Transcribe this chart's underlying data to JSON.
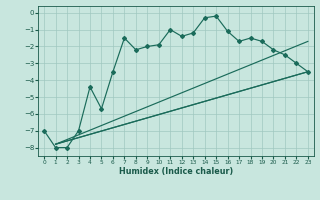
{
  "xlabel": "Humidex (Indice chaleur)",
  "bg_color": "#c8e6de",
  "grid_color": "#a0c8c0",
  "line_color": "#1a6b5a",
  "xlim": [
    -0.5,
    23.5
  ],
  "ylim": [
    -8.5,
    0.4
  ],
  "yticks": [
    0,
    -1,
    -2,
    -3,
    -4,
    -5,
    -6,
    -7,
    -8
  ],
  "xticks": [
    0,
    1,
    2,
    3,
    4,
    5,
    6,
    7,
    8,
    9,
    10,
    11,
    12,
    13,
    14,
    15,
    16,
    17,
    18,
    19,
    20,
    21,
    22,
    23
  ],
  "main_x": [
    0,
    1,
    2,
    3,
    4,
    5,
    6,
    7,
    8,
    9,
    10,
    11,
    12,
    13,
    14,
    15,
    16,
    17,
    18,
    19,
    20,
    21,
    22,
    23
  ],
  "main_y": [
    -7.0,
    -8.0,
    -8.0,
    -7.0,
    -4.4,
    -5.7,
    -3.5,
    -1.5,
    -2.2,
    -2.0,
    -1.9,
    -1.0,
    -1.4,
    -1.2,
    -0.3,
    -0.2,
    -1.1,
    -1.7,
    -1.5,
    -1.7,
    -2.2,
    -2.5,
    -3.0,
    -3.5
  ],
  "fan_lines": [
    {
      "x": [
        1,
        23
      ],
      "y": [
        -7.8,
        -1.7
      ]
    },
    {
      "x": [
        1,
        23
      ],
      "y": [
        -7.8,
        -3.5
      ]
    },
    {
      "x": [
        1,
        23
      ],
      "y": [
        -7.8,
        -3.5
      ]
    }
  ]
}
